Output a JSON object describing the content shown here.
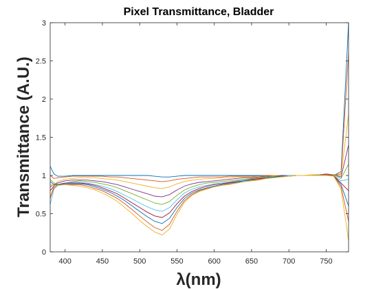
{
  "chart_data": {
    "type": "line",
    "title": "Pixel Transmittance, Bladder",
    "ylabel": "Transmittance (A.U.)",
    "xlabel": "λ(nm)",
    "xlim": [
      380,
      780
    ],
    "ylim": [
      0,
      3
    ],
    "xticks": [
      400,
      450,
      500,
      550,
      600,
      650,
      700,
      750
    ],
    "yticks": [
      0,
      0.5,
      1,
      1.5,
      2,
      2.5,
      3
    ],
    "xtick_labels": [
      "400",
      "450",
      "500",
      "550",
      "600",
      "650",
      "700",
      "750"
    ],
    "ytick_labels": [
      "0",
      "0.5",
      "1",
      "1.5",
      "2",
      "2.5",
      "3"
    ],
    "grid": false,
    "legend": "none",
    "line_colors": [
      "#0072BD",
      "#D95319",
      "#EDB120",
      "#7E2F8E",
      "#77AC30",
      "#4DBEEE",
      "#A2142F"
    ],
    "x": [
      380,
      385,
      390,
      400,
      410,
      420,
      430,
      440,
      450,
      460,
      470,
      480,
      490,
      500,
      510,
      520,
      530,
      540,
      550,
      560,
      570,
      580,
      590,
      600,
      610,
      620,
      630,
      640,
      650,
      660,
      670,
      680,
      690,
      700,
      710,
      720,
      730,
      740,
      750,
      760,
      770,
      780
    ],
    "series": [
      {
        "values": [
          1.12,
          1.02,
          0.99,
          0.99,
          1.0,
          1.0,
          1.0,
          1.0,
          1.0,
          1.0,
          1.0,
          1.0,
          1.0,
          1.0,
          1.0,
          0.99,
          0.98,
          0.98,
          0.99,
          1.0,
          1.0,
          1.0,
          1.0,
          1.0,
          1.0,
          1.0,
          1.0,
          1.0,
          1.0,
          1.0,
          1.0,
          1.0,
          1.0,
          1.0,
          1.0,
          1.0,
          1.0,
          1.0,
          1.0,
          1.0,
          1.05,
          3.0
        ]
      },
      {
        "values": [
          1.0,
          0.96,
          0.97,
          0.98,
          0.99,
          0.99,
          0.99,
          0.99,
          0.99,
          0.98,
          0.98,
          0.97,
          0.96,
          0.95,
          0.94,
          0.93,
          0.92,
          0.93,
          0.95,
          0.96,
          0.97,
          0.98,
          0.98,
          0.98,
          0.98,
          0.99,
          0.99,
          0.99,
          0.99,
          0.99,
          1.0,
          1.0,
          1.0,
          1.0,
          1.0,
          1.0,
          1.0,
          1.0,
          1.01,
          1.01,
          1.02,
          2.6
        ]
      },
      {
        "values": [
          0.72,
          0.86,
          0.92,
          0.95,
          0.96,
          0.97,
          0.97,
          0.97,
          0.96,
          0.95,
          0.94,
          0.92,
          0.9,
          0.88,
          0.86,
          0.84,
          0.83,
          0.85,
          0.89,
          0.92,
          0.94,
          0.95,
          0.96,
          0.96,
          0.97,
          0.97,
          0.98,
          0.98,
          0.98,
          0.99,
          0.99,
          1.0,
          1.0,
          1.0,
          1.0,
          1.0,
          1.01,
          1.01,
          1.01,
          1.01,
          1.0,
          1.8
        ]
      },
      {
        "values": [
          0.85,
          0.88,
          0.9,
          0.93,
          0.94,
          0.94,
          0.94,
          0.93,
          0.92,
          0.9,
          0.88,
          0.85,
          0.82,
          0.79,
          0.76,
          0.73,
          0.72,
          0.75,
          0.81,
          0.86,
          0.89,
          0.91,
          0.92,
          0.93,
          0.94,
          0.95,
          0.96,
          0.97,
          0.97,
          0.98,
          0.99,
          0.99,
          1.0,
          1.0,
          1.0,
          1.0,
          1.0,
          1.01,
          1.02,
          1.01,
          0.98,
          1.4
        ]
      },
      {
        "values": [
          0.95,
          0.9,
          0.88,
          0.9,
          0.92,
          0.93,
          0.92,
          0.91,
          0.89,
          0.87,
          0.84,
          0.8,
          0.76,
          0.72,
          0.68,
          0.64,
          0.62,
          0.66,
          0.74,
          0.81,
          0.85,
          0.88,
          0.9,
          0.91,
          0.92,
          0.93,
          0.94,
          0.95,
          0.96,
          0.97,
          0.98,
          0.99,
          0.99,
          1.0,
          1.0,
          1.0,
          1.0,
          1.01,
          1.01,
          1.01,
          0.96,
          1.15
        ]
      },
      {
        "values": [
          0.62,
          0.82,
          0.87,
          0.9,
          0.91,
          0.91,
          0.9,
          0.88,
          0.86,
          0.83,
          0.79,
          0.74,
          0.69,
          0.64,
          0.59,
          0.55,
          0.53,
          0.58,
          0.68,
          0.77,
          0.82,
          0.85,
          0.87,
          0.89,
          0.9,
          0.91,
          0.93,
          0.94,
          0.95,
          0.96,
          0.97,
          0.98,
          0.99,
          1.0,
          1.0,
          1.0,
          1.0,
          1.0,
          1.01,
          1.0,
          0.93,
          0.95
        ]
      },
      {
        "values": [
          0.8,
          0.86,
          0.88,
          0.9,
          0.9,
          0.9,
          0.89,
          0.87,
          0.84,
          0.8,
          0.76,
          0.7,
          0.64,
          0.58,
          0.52,
          0.47,
          0.45,
          0.51,
          0.63,
          0.73,
          0.79,
          0.83,
          0.86,
          0.88,
          0.89,
          0.91,
          0.92,
          0.93,
          0.95,
          0.96,
          0.97,
          0.98,
          0.99,
          0.99,
          1.0,
          1.0,
          1.0,
          1.0,
          1.01,
          1.0,
          0.9,
          0.8
        ]
      },
      {
        "values": [
          0.92,
          0.88,
          0.88,
          0.89,
          0.89,
          0.89,
          0.88,
          0.85,
          0.82,
          0.78,
          0.73,
          0.67,
          0.6,
          0.53,
          0.46,
          0.4,
          0.37,
          0.44,
          0.58,
          0.7,
          0.77,
          0.81,
          0.84,
          0.86,
          0.88,
          0.9,
          0.91,
          0.93,
          0.94,
          0.95,
          0.97,
          0.98,
          0.99,
          0.99,
          1.0,
          1.0,
          1.0,
          1.0,
          1.01,
          1.0,
          0.88,
          0.6
        ]
      },
      {
        "values": [
          0.7,
          0.84,
          0.87,
          0.88,
          0.88,
          0.88,
          0.86,
          0.83,
          0.8,
          0.75,
          0.7,
          0.63,
          0.55,
          0.47,
          0.39,
          0.32,
          0.28,
          0.36,
          0.53,
          0.67,
          0.75,
          0.8,
          0.83,
          0.85,
          0.87,
          0.89,
          0.9,
          0.92,
          0.93,
          0.95,
          0.96,
          0.97,
          0.98,
          0.99,
          1.0,
          1.0,
          1.0,
          1.0,
          1.01,
          1.0,
          0.85,
          0.4
        ]
      },
      {
        "values": [
          0.88,
          0.87,
          0.87,
          0.88,
          0.87,
          0.86,
          0.84,
          0.81,
          0.77,
          0.72,
          0.66,
          0.58,
          0.5,
          0.41,
          0.33,
          0.26,
          0.22,
          0.3,
          0.49,
          0.65,
          0.74,
          0.79,
          0.82,
          0.85,
          0.87,
          0.88,
          0.9,
          0.92,
          0.93,
          0.94,
          0.96,
          0.97,
          0.98,
          0.99,
          1.0,
          1.0,
          1.0,
          1.0,
          1.0,
          0.99,
          0.82,
          0.15
        ]
      }
    ]
  }
}
